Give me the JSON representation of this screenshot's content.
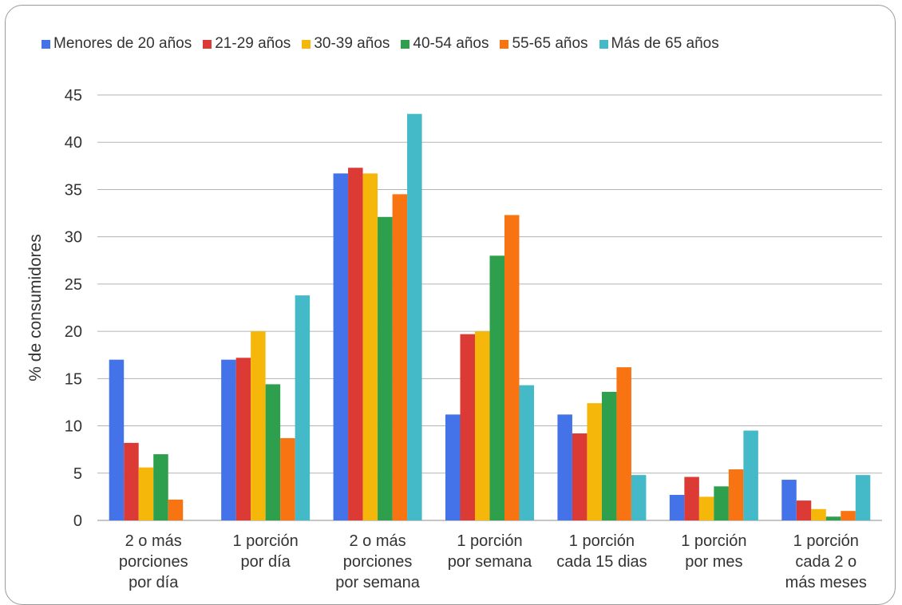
{
  "chart_data": {
    "type": "bar",
    "title": "",
    "xlabel": "",
    "ylabel": "% de consumidores",
    "ylim": [
      0,
      45
    ],
    "yticks": [
      0,
      5,
      10,
      15,
      20,
      25,
      30,
      35,
      40,
      45
    ],
    "grid": true,
    "legend_position": "top",
    "categories": [
      [
        "2 o más",
        "porciones",
        "por día"
      ],
      [
        "1 porción",
        "por día"
      ],
      [
        "2 o más",
        "porciones",
        "por semana"
      ],
      [
        "1 porción",
        "por semana"
      ],
      [
        "1 porción",
        "cada 15 dias"
      ],
      [
        "1 porción",
        "por mes"
      ],
      [
        "1 porción",
        "cada 2 o",
        "más meses"
      ]
    ],
    "series": [
      {
        "name": "Menores de 20 años",
        "color": "#4472e8",
        "values": [
          17.0,
          17.0,
          36.7,
          11.2,
          11.2,
          2.7,
          4.3
        ]
      },
      {
        "name": "21-29 años",
        "color": "#db3a35",
        "values": [
          8.2,
          17.2,
          37.3,
          19.7,
          9.2,
          4.6,
          2.1
        ]
      },
      {
        "name": "30-39 años",
        "color": "#f6b70b",
        "values": [
          5.6,
          20.0,
          36.7,
          20.0,
          12.4,
          2.5,
          1.2
        ]
      },
      {
        "name": "40-54 años",
        "color": "#2e9f4d",
        "values": [
          7.0,
          14.4,
          32.1,
          28.0,
          13.6,
          3.6,
          0.4
        ]
      },
      {
        "name": "55-65 años",
        "color": "#f87312",
        "values": [
          2.2,
          8.7,
          34.5,
          32.3,
          16.2,
          5.4,
          1.0
        ]
      },
      {
        "name": "Más de 65 años",
        "color": "#44b9c7",
        "values": [
          0,
          23.8,
          43.0,
          14.3,
          4.8,
          9.5,
          4.8
        ]
      }
    ]
  }
}
